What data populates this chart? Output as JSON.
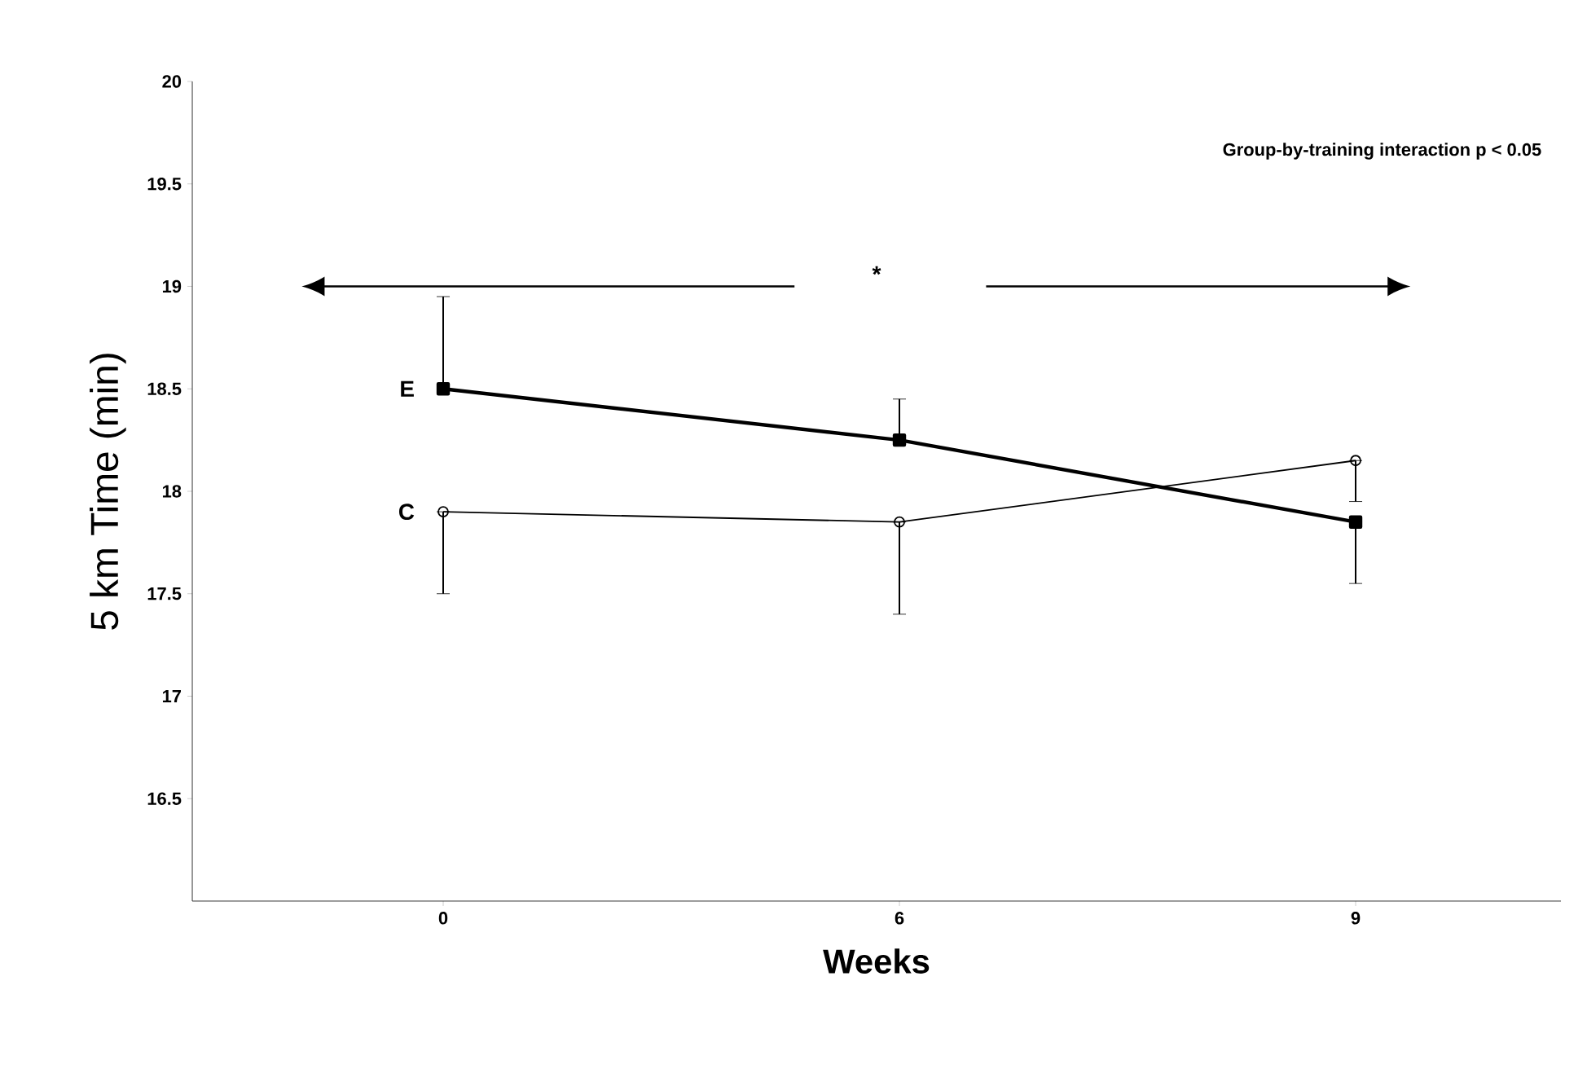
{
  "chart_data": {
    "type": "line",
    "xlabel": "Weeks",
    "ylabel": "5 km Time (min)",
    "categories": [
      "0",
      "6",
      "9"
    ],
    "ylim": [
      16,
      20
    ],
    "yticks": [
      16.5,
      17,
      17.5,
      18,
      18.5,
      19,
      19.5,
      20
    ],
    "legend": false,
    "grid": false,
    "annotations": [
      "Group-by-training interaction p < 0.05",
      "*"
    ],
    "series": [
      {
        "name": "E",
        "color": "#000000",
        "marker": "square",
        "values": [
          18.5,
          18.25,
          17.85
        ],
        "errors": [
          [
            18.5,
            18.95
          ],
          [
            18.25,
            18.45
          ],
          [
            17.55,
            17.85
          ]
        ]
      },
      {
        "name": "C",
        "color": "#000000",
        "marker": "circle",
        "values": [
          17.9,
          17.85,
          18.15
        ],
        "errors": [
          [
            17.5,
            17.9
          ],
          [
            17.4,
            17.85
          ],
          [
            17.95,
            18.15
          ]
        ]
      }
    ]
  }
}
